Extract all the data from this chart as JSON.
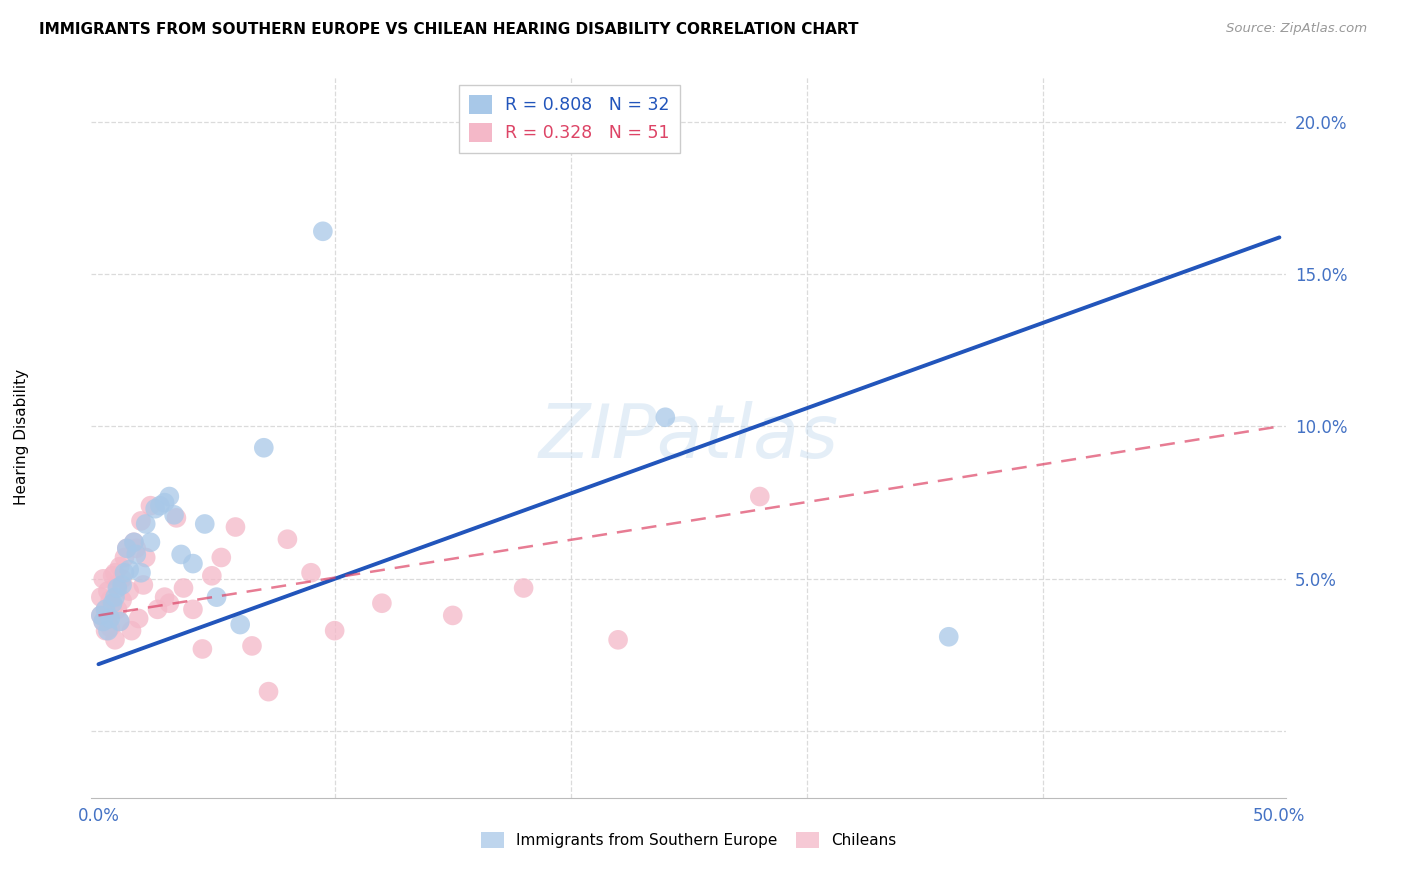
{
  "title": "IMMIGRANTS FROM SOUTHERN EUROPE VS CHILEAN HEARING DISABILITY CORRELATION CHART",
  "source": "Source: ZipAtlas.com",
  "ylabel": "Hearing Disability",
  "xlim": [
    -0.003,
    0.503
  ],
  "ylim": [
    -0.022,
    0.215
  ],
  "xticks": [
    0.0,
    0.1,
    0.2,
    0.3,
    0.4,
    0.5
  ],
  "xticklabels": [
    "0.0%",
    "",
    "",
    "",
    "",
    "50.0%"
  ],
  "yticks": [
    0.0,
    0.05,
    0.1,
    0.15,
    0.2
  ],
  "yticklabels": [
    "",
    "5.0%",
    "10.0%",
    "15.0%",
    "20.0%"
  ],
  "blue_R": 0.808,
  "blue_N": 32,
  "pink_R": 0.328,
  "pink_N": 51,
  "blue_color": "#a8c8e8",
  "pink_color": "#f4b8c8",
  "blue_line_color": "#2255bb",
  "pink_line_color": "#dd4466",
  "grid_color": "#d8d8d8",
  "blue_line_x0": 0.0,
  "blue_line_y0": 0.022,
  "blue_line_x1": 0.5,
  "blue_line_y1": 0.162,
  "pink_line_x0": 0.0,
  "pink_line_y0": 0.038,
  "pink_line_x1": 0.5,
  "pink_line_y1": 0.1,
  "blue_scatter_x": [
    0.001,
    0.002,
    0.003,
    0.004,
    0.005,
    0.006,
    0.007,
    0.008,
    0.009,
    0.01,
    0.011,
    0.012,
    0.013,
    0.015,
    0.016,
    0.018,
    0.02,
    0.022,
    0.024,
    0.026,
    0.028,
    0.03,
    0.032,
    0.035,
    0.04,
    0.045,
    0.05,
    0.06,
    0.07,
    0.095,
    0.24,
    0.36
  ],
  "blue_scatter_y": [
    0.038,
    0.036,
    0.04,
    0.033,
    0.037,
    0.042,
    0.044,
    0.047,
    0.036,
    0.048,
    0.052,
    0.06,
    0.053,
    0.062,
    0.058,
    0.052,
    0.068,
    0.062,
    0.073,
    0.074,
    0.075,
    0.077,
    0.071,
    0.058,
    0.055,
    0.068,
    0.044,
    0.035,
    0.093,
    0.164,
    0.103,
    0.031
  ],
  "pink_scatter_x": [
    0.001,
    0.001,
    0.002,
    0.002,
    0.003,
    0.003,
    0.004,
    0.004,
    0.005,
    0.005,
    0.006,
    0.006,
    0.007,
    0.007,
    0.008,
    0.008,
    0.009,
    0.009,
    0.01,
    0.01,
    0.011,
    0.012,
    0.013,
    0.014,
    0.015,
    0.016,
    0.017,
    0.018,
    0.019,
    0.02,
    0.022,
    0.025,
    0.028,
    0.03,
    0.033,
    0.036,
    0.04,
    0.044,
    0.048,
    0.052,
    0.058,
    0.065,
    0.072,
    0.08,
    0.09,
    0.1,
    0.12,
    0.15,
    0.18,
    0.22,
    0.28
  ],
  "pink_scatter_y": [
    0.038,
    0.044,
    0.036,
    0.05,
    0.033,
    0.04,
    0.037,
    0.046,
    0.034,
    0.043,
    0.051,
    0.04,
    0.03,
    0.052,
    0.048,
    0.04,
    0.054,
    0.036,
    0.05,
    0.043,
    0.057,
    0.06,
    0.046,
    0.033,
    0.062,
    0.06,
    0.037,
    0.069,
    0.048,
    0.057,
    0.074,
    0.04,
    0.044,
    0.042,
    0.07,
    0.047,
    0.04,
    0.027,
    0.051,
    0.057,
    0.067,
    0.028,
    0.013,
    0.063,
    0.052,
    0.033,
    0.042,
    0.038,
    0.047,
    0.03,
    0.077
  ]
}
